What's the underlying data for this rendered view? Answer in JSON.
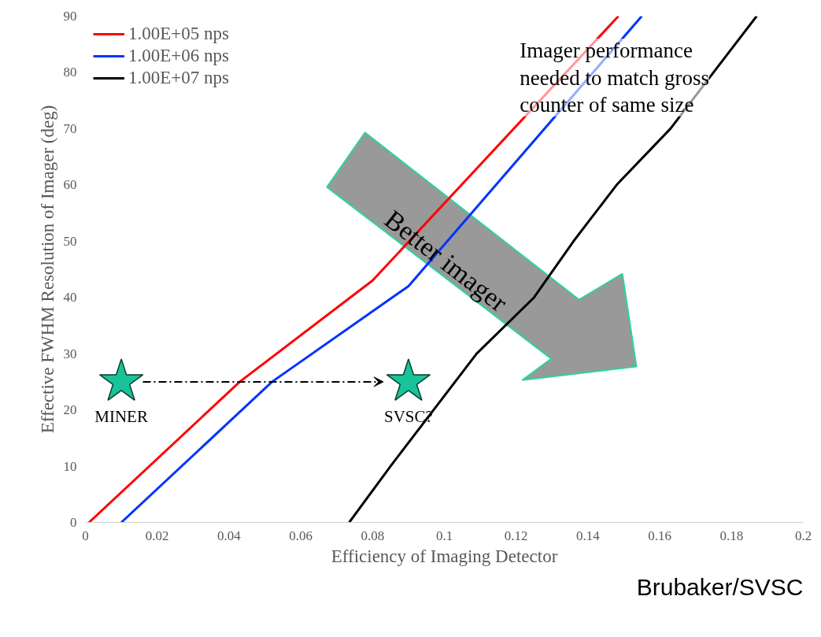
{
  "chart_data": {
    "type": "line",
    "xlabel": "Efficiency of Imaging Detector",
    "ylabel": "Effective FWHM Resolution of Imager (deg)",
    "xlim": [
      0,
      0.2
    ],
    "ylim": [
      0,
      90
    ],
    "xticks": [
      0,
      0.02,
      0.04,
      0.06,
      0.08,
      0.1,
      0.12,
      0.14,
      0.16,
      0.18,
      0.2
    ],
    "yticks": [
      0,
      10,
      20,
      30,
      40,
      50,
      60,
      70,
      80,
      90
    ],
    "grid": false,
    "legend": "top left",
    "marker": "none",
    "line_style": "solid",
    "series": [
      {
        "name": "1.00E+05 nps",
        "color": "#ff0000",
        "x": [
          0.001,
          0.043,
          0.08,
          0.1485
        ],
        "values": [
          0,
          25,
          43,
          90
        ]
      },
      {
        "name": "1.00E+06 nps",
        "color": "#0033ff",
        "x": [
          0.01,
          0.052,
          0.09,
          0.155
        ],
        "values": [
          0,
          25,
          42,
          90
        ]
      },
      {
        "name": "1.00E+07 nps",
        "color": "#000000",
        "x": [
          0.0735,
          0.085,
          0.097,
          0.109,
          0.125,
          0.136,
          0.148,
          0.163,
          0.175,
          0.187
        ],
        "values": [
          0,
          10,
          20,
          30,
          40,
          50,
          60,
          70,
          80,
          90
        ]
      },
      {
        "type": "scatter",
        "marker": "star",
        "color": "#19c39a",
        "x": [
          0.01,
          0.09
        ],
        "values": [
          25,
          25
        ]
      }
    ],
    "annotations": [
      "Imager performance needed to match gross counter of same size",
      "Better imager",
      "Brubaker/SVSC",
      {
        "text": "MINER",
        "x": 0.01,
        "y": 25
      },
      {
        "text": "SVSC?",
        "x": 0.09,
        "y": 25
      }
    ]
  }
}
